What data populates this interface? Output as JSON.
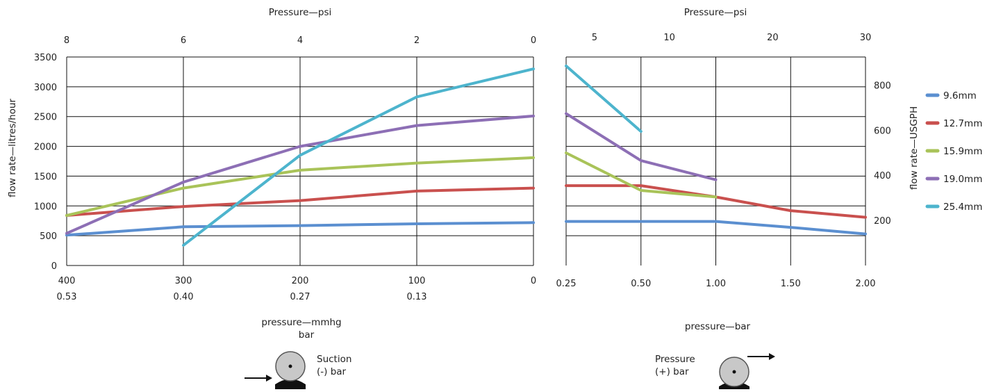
{
  "chart_data": [
    {
      "type": "line",
      "panel": "suction",
      "top_axis_title": "Pressure—psi",
      "top_ticks": [
        "8",
        "6",
        "4",
        "2",
        "0"
      ],
      "ylabel": "flow rate—litres/hour",
      "yticks": [
        "0",
        "500",
        "1000",
        "1500",
        "2000",
        "2500",
        "3000",
        "3500"
      ],
      "ylim": [
        0,
        3500
      ],
      "x": [
        400,
        300,
        200,
        100,
        0
      ],
      "xlim": [
        400,
        0
      ],
      "xticks_mmhg": [
        "400",
        "300",
        "200",
        "100",
        "0"
      ],
      "xticks_bar": [
        "0.53",
        "0.40",
        "0.27",
        "0.13",
        ""
      ],
      "xlabel_line1": "pressure—mmhg",
      "xlabel_line2": "bar",
      "grid": true,
      "series": [
        {
          "name": "9.6mm",
          "color": "#5b8fd0",
          "x": [
            400,
            300,
            200,
            100,
            0
          ],
          "values": [
            510,
            650,
            670,
            700,
            720
          ]
        },
        {
          "name": "12.7mm",
          "color": "#c9504e",
          "x": [
            400,
            300,
            200,
            100,
            0
          ],
          "values": [
            840,
            990,
            1090,
            1250,
            1300
          ]
        },
        {
          "name": "15.9mm",
          "color": "#a9c359",
          "x": [
            400,
            300,
            200,
            100,
            0
          ],
          "values": [
            840,
            1300,
            1600,
            1720,
            1810
          ]
        },
        {
          "name": "19.0mm",
          "color": "#8d6fb5",
          "x": [
            400,
            300,
            200,
            100,
            0
          ],
          "values": [
            540,
            1400,
            2000,
            2350,
            2510
          ]
        },
        {
          "name": "25.4mm",
          "color": "#4db4cd",
          "x": [
            300,
            200,
            100,
            0
          ],
          "values": [
            340,
            1850,
            2830,
            3300
          ]
        }
      ]
    },
    {
      "type": "line",
      "panel": "pressure",
      "top_axis_title": "Pressure—psi",
      "top_ticks": [
        "5",
        "10",
        "20",
        "30"
      ],
      "y2label": "flow rate—USGPH",
      "y2ticks": [
        "200",
        "400",
        "600",
        "800"
      ],
      "xticks": [
        "0.25",
        "0.50",
        "1.00",
        "1.50",
        "2.00"
      ],
      "xlabel": "pressure—bar",
      "grid": true,
      "series": [
        {
          "name": "9.6mm",
          "x": [
            "0.25",
            "0.50",
            "1.00",
            "1.50",
            "2.00"
          ],
          "values": [
            740,
            740,
            740,
            640,
            530
          ]
        },
        {
          "name": "12.7mm",
          "x": [
            "0.25",
            "0.50",
            "1.00",
            "1.50",
            "2.00"
          ],
          "values": [
            1340,
            1340,
            1150,
            920,
            810
          ]
        },
        {
          "name": "15.9mm",
          "x": [
            "0.25",
            "0.50",
            "1.00"
          ],
          "values": [
            1890,
            1260,
            1150
          ]
        },
        {
          "name": "19.0mm",
          "x": [
            "0.25",
            "0.50",
            "1.00"
          ],
          "values": [
            2550,
            1760,
            1440
          ]
        },
        {
          "name": "25.4mm",
          "x": [
            "0.25",
            "0.50"
          ],
          "values": [
            3350,
            2250
          ]
        }
      ]
    }
  ],
  "legend": {
    "placement": "right",
    "entries": [
      {
        "label": "9.6mm",
        "color": "#5b8fd0"
      },
      {
        "label": "12.7mm",
        "color": "#c9504e"
      },
      {
        "label": "15.9mm",
        "color": "#a9c359"
      },
      {
        "label": "19.0mm",
        "color": "#8d6fb5"
      },
      {
        "label": "25.4mm",
        "color": "#4db4cd"
      }
    ]
  },
  "diagrams": {
    "suction_label_line1": "Suction",
    "suction_label_line2": "(-) bar",
    "pressure_label_line1": "Pressure",
    "pressure_label_line2": "(+) bar"
  }
}
